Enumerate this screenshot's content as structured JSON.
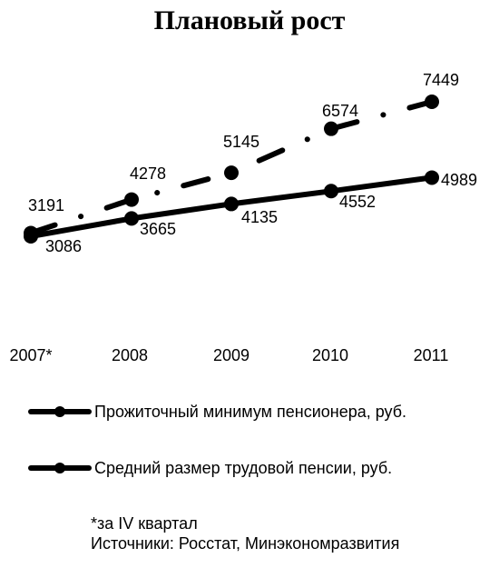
{
  "chart_data": {
    "type": "line",
    "title": "Плановый рост",
    "categories": [
      "2007*",
      "2008",
      "2009",
      "2010",
      "2011"
    ],
    "series": [
      {
        "name": "Прожиточный минимум пенсионера, руб.",
        "values": [
          3086,
          3665,
          4135,
          4552,
          4989
        ],
        "labels": [
          "3086",
          "3665",
          "4135",
          "4552",
          "4989"
        ],
        "style": "solid",
        "color": "#000000"
      },
      {
        "name": "Средний размер трудовой пенсии, руб.",
        "values": [
          3191,
          4278,
          5145,
          6574,
          7449
        ],
        "labels": [
          "3191",
          "4278",
          "5145",
          "6574",
          "7449"
        ],
        "style": "dash-dot",
        "color": "#000000"
      }
    ],
    "ylim": [
      0,
      8000
    ],
    "grid": false,
    "legend_position": "bottom"
  },
  "footnote": {
    "line1": "*за IV квартал",
    "line2": "Источники: Росстат, Минэкономразвития"
  }
}
